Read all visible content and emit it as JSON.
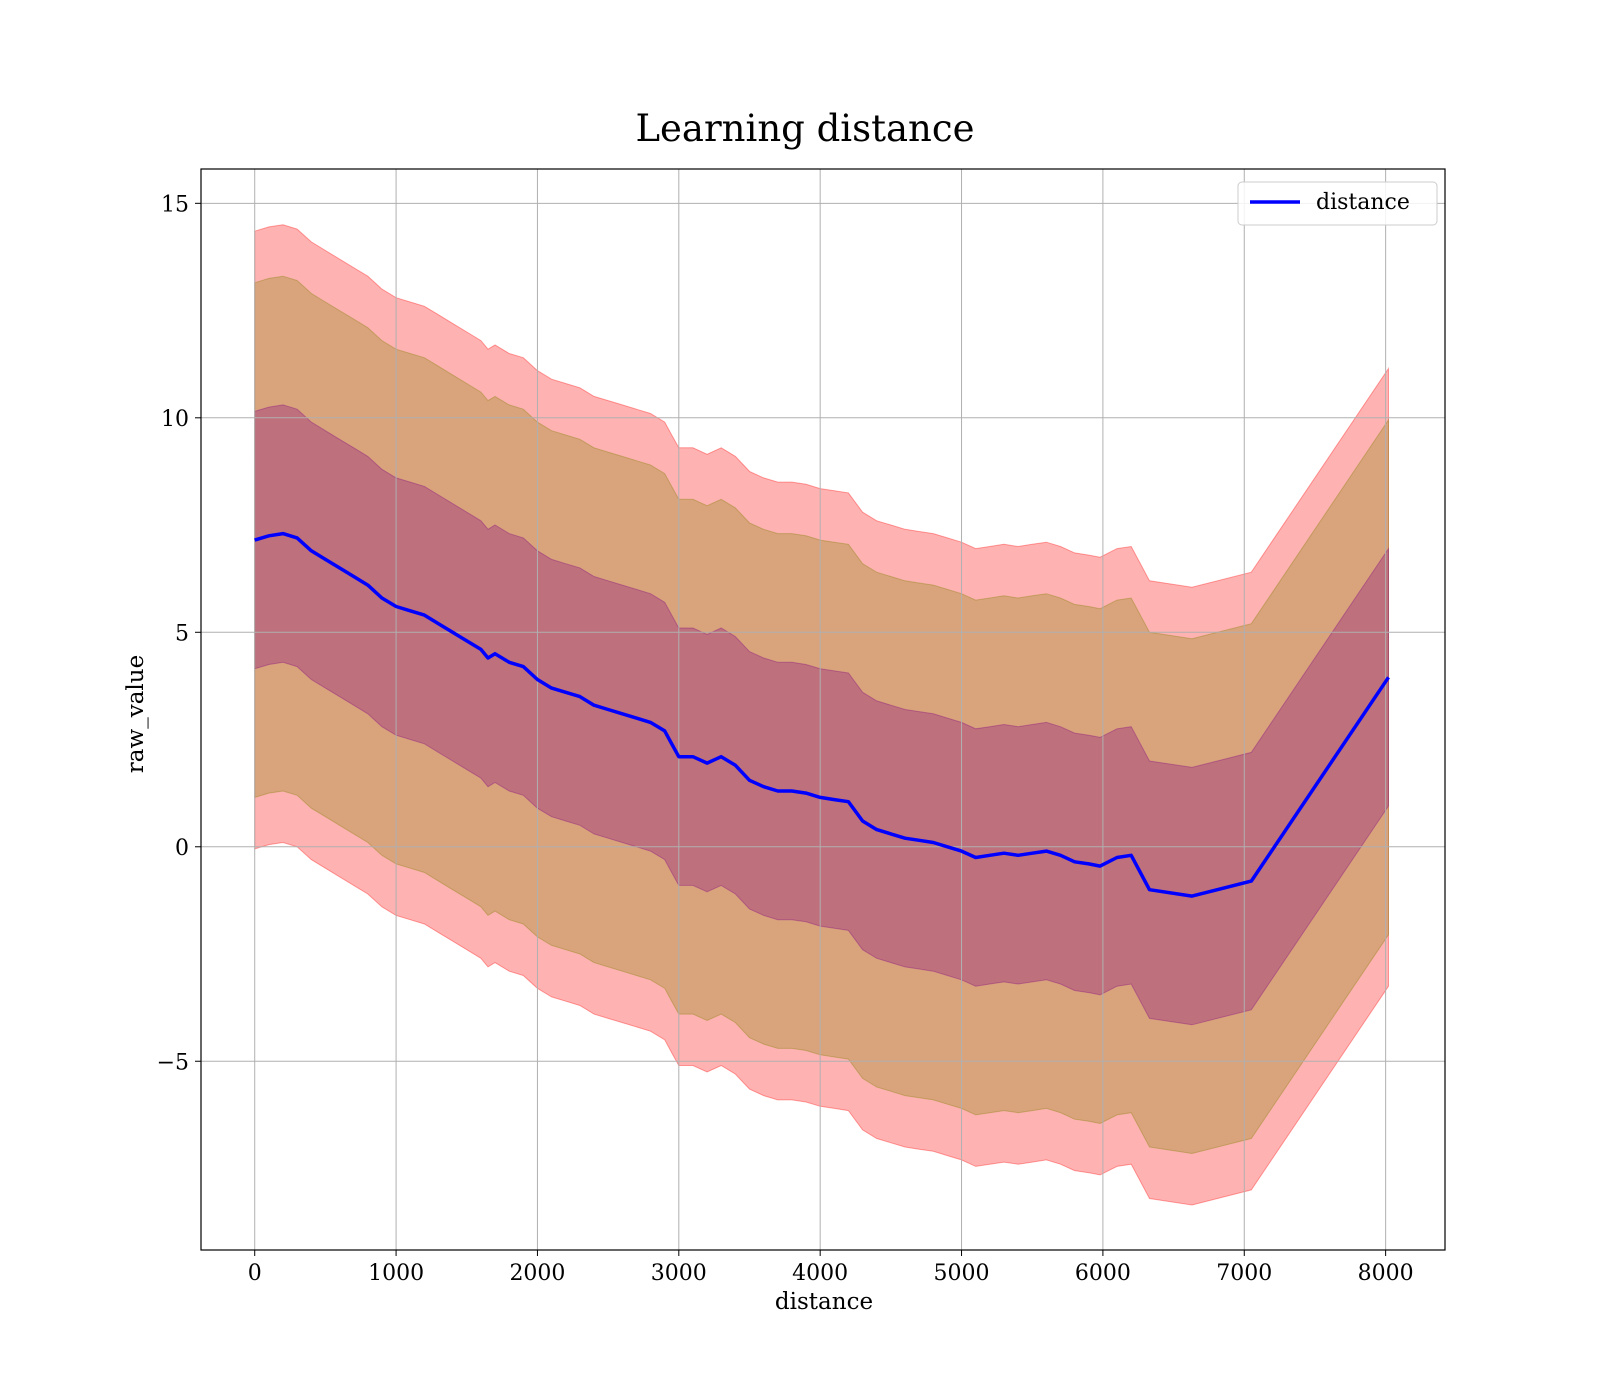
{
  "chart_data": {
    "type": "line",
    "title": "Learning distance",
    "xlabel": "distance",
    "ylabel": "raw_value",
    "xlim": [
      -380,
      8420
    ],
    "ylim": [
      -9.4,
      15.8
    ],
    "xticks": [
      0,
      1000,
      2000,
      3000,
      4000,
      5000,
      6000,
      7000,
      8000
    ],
    "yticks": [
      -5,
      0,
      5,
      10,
      15
    ],
    "ytick_labels": [
      "−5",
      "0",
      "5",
      "10",
      "15"
    ],
    "grid": true,
    "legend": {
      "position": "top-right",
      "entries": [
        "distance"
      ]
    },
    "colors": {
      "line": "#0000ff",
      "band_outer": "#ff0000",
      "band_middle": "#808000",
      "band_inner": "#800080"
    },
    "band_offsets": [
      3,
      6,
      7.2
    ],
    "series": [
      {
        "name": "distance",
        "x": [
          0,
          100,
          200,
          300,
          400,
          500,
          600,
          700,
          800,
          900,
          1000,
          1100,
          1200,
          1300,
          1400,
          1500,
          1600,
          1650,
          1700,
          1800,
          1900,
          2000,
          2100,
          2200,
          2300,
          2400,
          2500,
          2600,
          2700,
          2800,
          2900,
          2950,
          3000,
          3100,
          3200,
          3300,
          3400,
          3500,
          3600,
          3700,
          3800,
          3900,
          4000,
          4100,
          4200,
          4300,
          4400,
          4500,
          4600,
          4700,
          4800,
          4900,
          5000,
          5100,
          5200,
          5300,
          5400,
          5500,
          5600,
          5700,
          5800,
          5900,
          5980,
          6100,
          6200,
          6330,
          6630,
          7050,
          8020
        ],
        "y": [
          7.15,
          7.25,
          7.3,
          7.2,
          6.9,
          6.7,
          6.5,
          6.3,
          6.1,
          5.8,
          5.6,
          5.5,
          5.4,
          5.2,
          5.0,
          4.8,
          4.6,
          4.4,
          4.5,
          4.3,
          4.2,
          3.9,
          3.7,
          3.6,
          3.5,
          3.3,
          3.2,
          3.1,
          3.0,
          2.9,
          2.7,
          2.4,
          2.1,
          2.1,
          1.95,
          2.1,
          1.9,
          1.55,
          1.4,
          1.3,
          1.3,
          1.25,
          1.15,
          1.1,
          1.05,
          0.6,
          0.4,
          0.3,
          0.2,
          0.15,
          0.1,
          0.0,
          -0.1,
          -0.25,
          -0.2,
          -0.15,
          -0.2,
          -0.15,
          -0.1,
          -0.2,
          -0.35,
          -0.4,
          -0.45,
          -0.25,
          -0.2,
          -1.0,
          -1.15,
          -0.8,
          3.95
        ]
      }
    ]
  }
}
